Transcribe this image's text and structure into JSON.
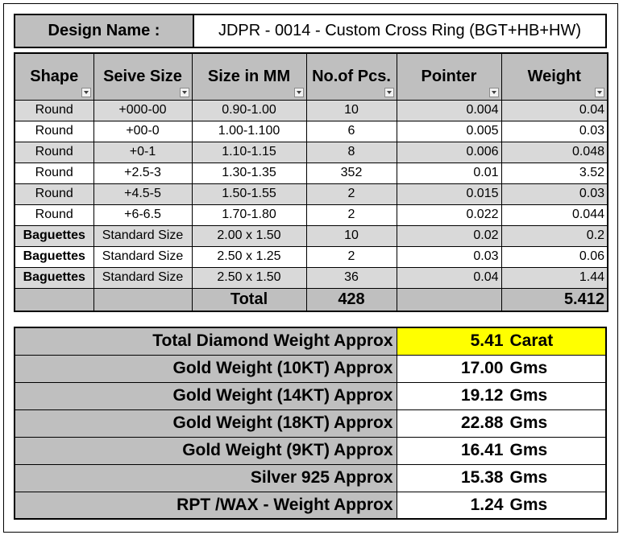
{
  "design": {
    "label": "Design Name :",
    "value": "JDPR - 0014 - Custom Cross Ring (BGT+HB+HW)"
  },
  "columns": [
    "Shape",
    "Seive Size",
    "Size in MM",
    "No.of Pcs.",
    "Pointer",
    "Weight"
  ],
  "rows": [
    {
      "shape": "Round",
      "sieve": "+000-00",
      "size": "0.90-1.00",
      "pcs": "10",
      "pointer": "0.004",
      "weight": "0.04"
    },
    {
      "shape": "Round",
      "sieve": "+00-0",
      "size": "1.00-1.100",
      "pcs": "6",
      "pointer": "0.005",
      "weight": "0.03"
    },
    {
      "shape": "Round",
      "sieve": "+0-1",
      "size": "1.10-1.15",
      "pcs": "8",
      "pointer": "0.006",
      "weight": "0.048"
    },
    {
      "shape": "Round",
      "sieve": "+2.5-3",
      "size": "1.30-1.35",
      "pcs": "352",
      "pointer": "0.01",
      "weight": "3.52"
    },
    {
      "shape": "Round",
      "sieve": "+4.5-5",
      "size": "1.50-1.55",
      "pcs": "2",
      "pointer": "0.015",
      "weight": "0.03"
    },
    {
      "shape": "Round",
      "sieve": "+6-6.5",
      "size": "1.70-1.80",
      "pcs": "2",
      "pointer": "0.022",
      "weight": "0.044"
    },
    {
      "shape": "Baguettes",
      "sieve": "Standard Size",
      "size": "2.00 x 1.50",
      "pcs": "10",
      "pointer": "0.02",
      "weight": "0.2"
    },
    {
      "shape": "Baguettes",
      "sieve": "Standard Size",
      "size": "2.50 x 1.25",
      "pcs": "2",
      "pointer": "0.03",
      "weight": "0.06"
    },
    {
      "shape": "Baguettes",
      "sieve": "Standard Size",
      "size": "2.50 x 1.50",
      "pcs": "36",
      "pointer": "0.04",
      "weight": "1.44"
    }
  ],
  "total": {
    "label": "Total",
    "pcs": "428",
    "weight": "5.412"
  },
  "summary": [
    {
      "label": "Total Diamond Weight Approx",
      "value": "5.41",
      "unit": "Carat",
      "highlight": true
    },
    {
      "label": "Gold Weight (10KT) Approx",
      "value": "17.00",
      "unit": "Gms"
    },
    {
      "label": "Gold Weight (14KT) Approx",
      "value": "19.12",
      "unit": "Gms"
    },
    {
      "label": "Gold Weight (18KT) Approx",
      "value": "22.88",
      "unit": "Gms"
    },
    {
      "label": "Gold Weight (9KT) Approx",
      "value": "16.41",
      "unit": "Gms"
    },
    {
      "label": "Silver 925 Approx",
      "value": "15.38",
      "unit": "Gms"
    },
    {
      "label": "RPT /WAX - Weight Approx",
      "value": "1.24",
      "unit": "Gms"
    }
  ],
  "colors": {
    "header_gray": "#bfbfbf",
    "row_shade": "#d9d9d9",
    "highlight": "#ffff00"
  },
  "icons": {
    "filter": "filter-dropdown-icon"
  }
}
